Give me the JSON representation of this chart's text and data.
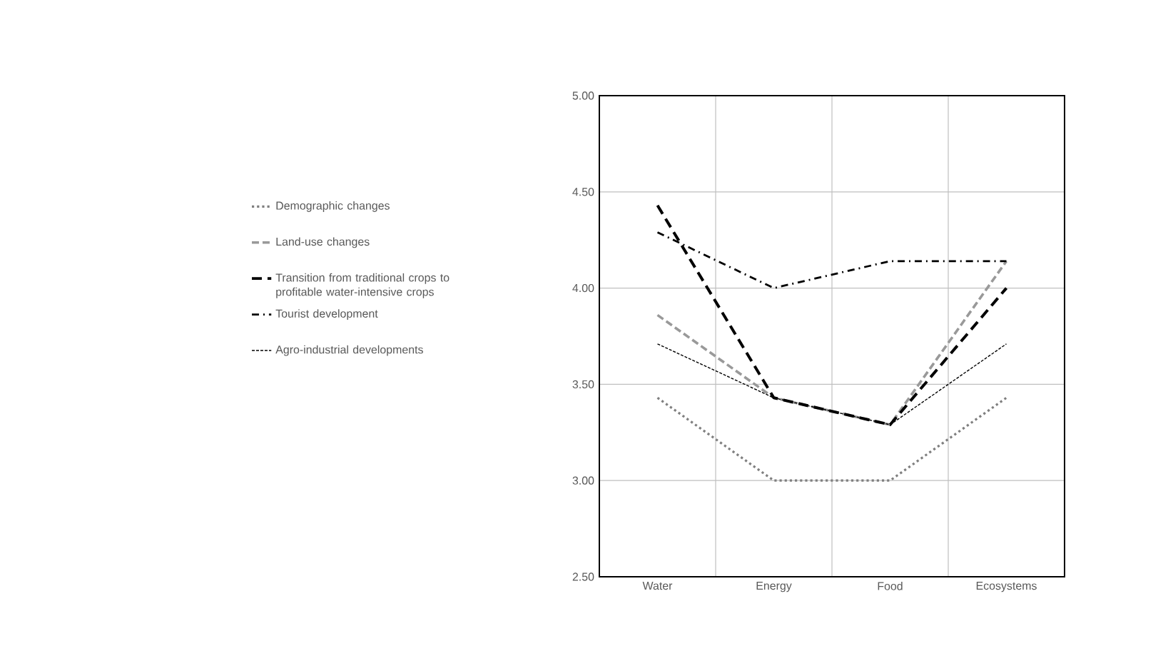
{
  "chart_data": {
    "type": "line",
    "categories": [
      "Water",
      "Energy",
      "Food",
      "Ecosystems"
    ],
    "series": [
      {
        "name": "Demographic changes",
        "color": "#7f7f7f",
        "line_style": "dotted",
        "values": [
          3.43,
          3.0,
          3.0,
          3.43
        ]
      },
      {
        "name": "Land-use changes",
        "color": "#999999",
        "line_style": "dashed",
        "values": [
          3.86,
          3.43,
          3.29,
          4.14
        ]
      },
      {
        "name": "Transition from traditional crops to profitable water-intensive crops",
        "color": "#000000",
        "line_style": "loosely dashed",
        "values": [
          4.43,
          3.43,
          3.29,
          4.0
        ]
      },
      {
        "name": "Tourist development",
        "color": "#000000",
        "line_style": "dashdot",
        "values": [
          4.29,
          4.0,
          4.14,
          4.14
        ]
      },
      {
        "name": "Agro-industrial developments",
        "color": "#000000",
        "line_style": "densely dashed",
        "values": [
          3.71,
          3.43,
          3.29,
          3.71
        ]
      }
    ],
    "ylim": [
      2.5,
      5.0
    ],
    "yticks": [
      {
        "value": 2.5,
        "label": "2.50"
      },
      {
        "value": 3.0,
        "label": "3.00"
      },
      {
        "value": 3.5,
        "label": "3.50"
      },
      {
        "value": 4.0,
        "label": "4.00"
      },
      {
        "value": 4.5,
        "label": "4.50"
      },
      {
        "value": 5.0,
        "label": "5.00"
      }
    ],
    "grid": true,
    "legend": "left",
    "marker": "none"
  }
}
